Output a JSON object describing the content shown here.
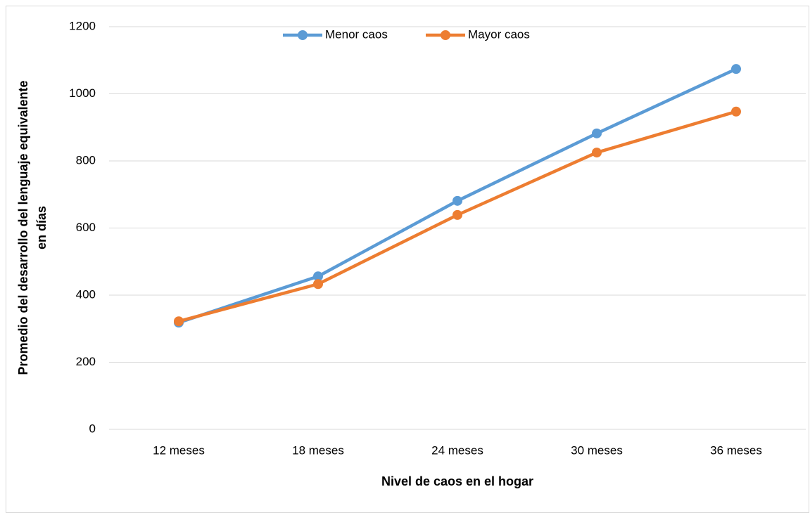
{
  "chart_data": {
    "type": "line",
    "categories": [
      "12 meses",
      "18 meses",
      "24 meses",
      "30 meses",
      "36 meses"
    ],
    "series": [
      {
        "name": "Menor caos",
        "color": "#5b9bd5",
        "values": [
          318,
          456,
          681,
          882,
          1074
        ]
      },
      {
        "name": "Mayor caos",
        "color": "#ed7d31",
        "values": [
          322,
          433,
          639,
          825,
          947
        ]
      }
    ],
    "xlabel": "Nivel de caos en el hogar",
    "ylabel": [
      "Promedio del desarrollo del lenguaje equivalente",
      "en días"
    ],
    "ylim": [
      0,
      1200
    ],
    "yticks": [
      0,
      200,
      400,
      600,
      800,
      1000,
      1200
    ],
    "grid": true,
    "legend": "top"
  }
}
